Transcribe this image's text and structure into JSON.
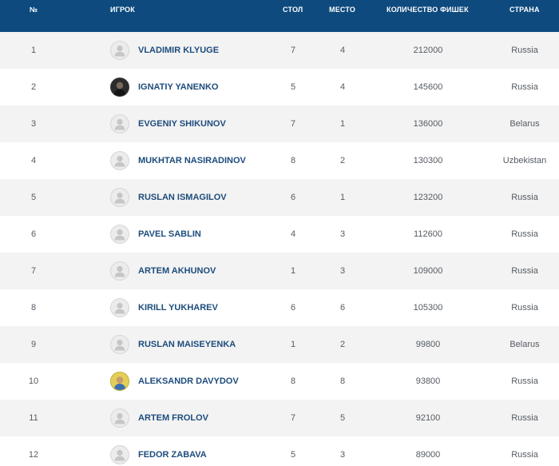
{
  "header": {
    "num": "№",
    "player": "ИГРОК",
    "table": "СТОЛ",
    "place": "МЕСТО",
    "chips": "КОЛИЧЕСТВО ФИШЕК",
    "country": "СТРАНА"
  },
  "rows": [
    {
      "num": "1",
      "name": "VLADIMIR KLYUGE",
      "table": "7",
      "place": "4",
      "chips": "212000",
      "country": "Russia",
      "avatar": "default-avatar-icon"
    },
    {
      "num": "2",
      "name": "IGNATIY YANENKO",
      "table": "5",
      "place": "4",
      "chips": "145600",
      "country": "Russia",
      "avatar": "player-photo"
    },
    {
      "num": "3",
      "name": "EVGENIY SHIKUNOV",
      "table": "7",
      "place": "1",
      "chips": "136000",
      "country": "Belarus",
      "avatar": "default-avatar-icon"
    },
    {
      "num": "4",
      "name": "MUKHTAR NASIRADINOV",
      "table": "8",
      "place": "2",
      "chips": "130300",
      "country": "Uzbekistan",
      "avatar": "default-avatar-icon"
    },
    {
      "num": "5",
      "name": "RUSLAN ISMAGILOV",
      "table": "6",
      "place": "1",
      "chips": "123200",
      "country": "Russia",
      "avatar": "default-avatar-icon"
    },
    {
      "num": "6",
      "name": "PAVEL SABLIN",
      "table": "4",
      "place": "3",
      "chips": "112600",
      "country": "Russia",
      "avatar": "default-avatar-icon"
    },
    {
      "num": "7",
      "name": "ARTEM AKHUNOV",
      "table": "1",
      "place": "3",
      "chips": "109000",
      "country": "Russia",
      "avatar": "default-avatar-icon"
    },
    {
      "num": "8",
      "name": "KIRILL YUKHAREV",
      "table": "6",
      "place": "6",
      "chips": "105300",
      "country": "Russia",
      "avatar": "default-avatar-icon"
    },
    {
      "num": "9",
      "name": "RUSLAN MAISEYENKA",
      "table": "1",
      "place": "2",
      "chips": "99800",
      "country": "Belarus",
      "avatar": "default-avatar-icon"
    },
    {
      "num": "10",
      "name": "ALEKSANDR DAVYDOV",
      "table": "8",
      "place": "8",
      "chips": "93800",
      "country": "Russia",
      "avatar": "player-photo"
    },
    {
      "num": "11",
      "name": "ARTEM FROLOV",
      "table": "7",
      "place": "5",
      "chips": "92100",
      "country": "Russia",
      "avatar": "default-avatar-icon"
    },
    {
      "num": "12",
      "name": "FEDOR ZABAVA",
      "table": "5",
      "place": "3",
      "chips": "89000",
      "country": "Russia",
      "avatar": "default-avatar-icon"
    }
  ],
  "colors": {
    "header_bg": "#0e4a7e",
    "name_text": "#1c4c7c",
    "row_alt_bg": "#f3f3f3"
  }
}
